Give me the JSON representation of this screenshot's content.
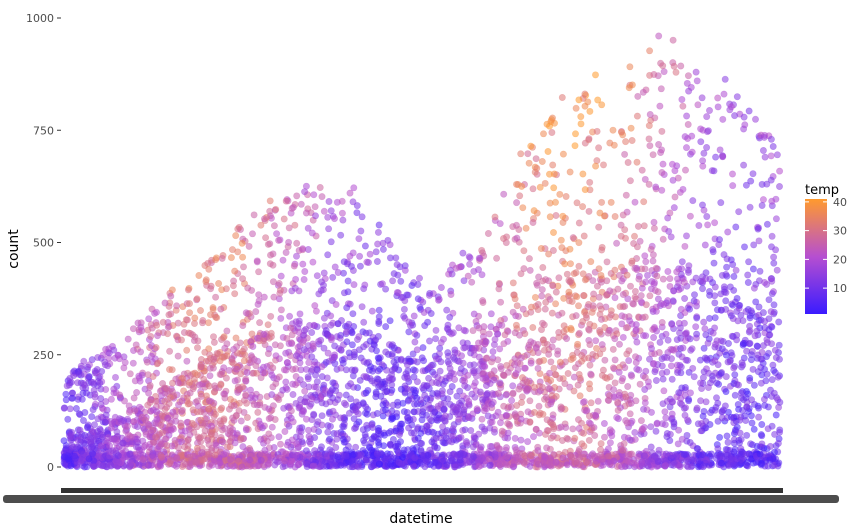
{
  "chart_data": {
    "type": "scatter",
    "title": "",
    "xlabel": "datetime",
    "ylabel": "count",
    "ylim": [
      0,
      1000
    ],
    "y_ticks": [
      0,
      250,
      500,
      750,
      1000
    ],
    "x_tick_labels": "overplotted (unreadable) datetime labels",
    "grid": false,
    "legend": {
      "title": "temp",
      "placement": "right",
      "type": "colorbar",
      "range": [
        1,
        41
      ],
      "ticks": [
        10,
        20,
        30,
        40
      ],
      "color_low": "#3a1bff",
      "color_mid": "#b64fd0",
      "color_high": "#ff9a2e"
    },
    "point_alpha": 0.55,
    "series_description": "bike sharing hourly counts over datetime; dense cloud rising from ~0-220 at start to peaks near 620 mid-range, dipping ~400, then peaking near 980 at the late range",
    "envelope": {
      "x_index": [
        0,
        60,
        160,
        230,
        300,
        360,
        420,
        480,
        540,
        600,
        660,
        720
      ],
      "upper_count": [
        210,
        300,
        520,
        640,
        620,
        420,
        520,
        820,
        880,
        980,
        900,
        760
      ],
      "mean_count": [
        55,
        85,
        190,
        230,
        230,
        160,
        210,
        300,
        320,
        330,
        300,
        230
      ]
    }
  }
}
